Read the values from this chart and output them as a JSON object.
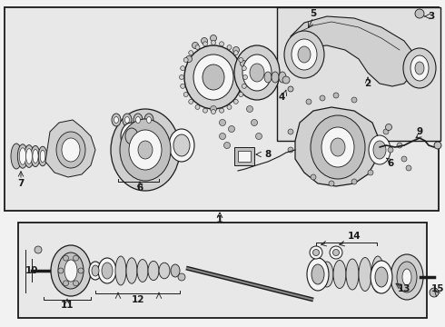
{
  "bg_color": "#f2f2f2",
  "main_bg": "#e8e8e8",
  "inset_bg": "#e0e0e0",
  "lower_bg": "#e8e8e8",
  "line_color": "#1a1a1a",
  "part_fill": "#d0d0d0",
  "part_fill2": "#c0c0c0",
  "part_fill3": "#b8b8b8",
  "white_fill": "#f5f5f5",
  "fig_w": 4.9,
  "fig_h": 3.6,
  "dpi": 100
}
